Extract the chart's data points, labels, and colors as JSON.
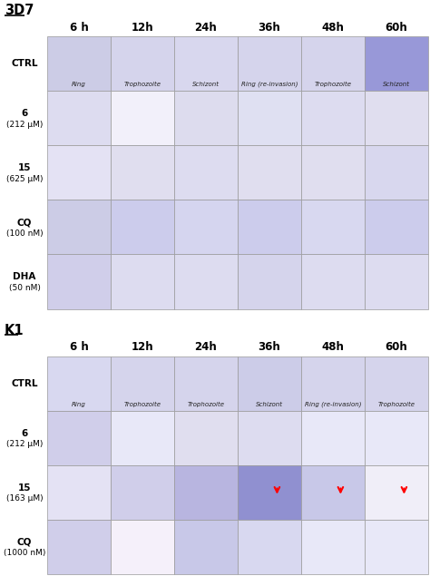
{
  "fig_width": 4.74,
  "fig_height": 6.35,
  "dpi": 100,
  "bg_color": "#ffffff",
  "section1": {
    "title": "3D7",
    "col_headers": [
      "6 h",
      "12h",
      "24h",
      "36h",
      "48h",
      "60h"
    ],
    "rows": [
      {
        "label_line1": "CTRL",
        "label_line2": "",
        "sublabels": [
          "Ring",
          "Trophozoite",
          "Schizont",
          "Ring (re-invasion)",
          "Trophozoite",
          "Schizont"
        ],
        "cell_colors": [
          "#cccce6",
          "#d5d4ec",
          "#d8d7ee",
          "#d5d4ec",
          "#d5d4ec",
          "#9898d8"
        ]
      },
      {
        "label_line1": "6",
        "label_line2": "(212 μM)",
        "sublabels": [
          "",
          "",
          "",
          "",
          "",
          ""
        ],
        "cell_colors": [
          "#dddcf0",
          "#f2f0fa",
          "#dddcee",
          "#dfe0f2",
          "#dddcf0",
          "#e0deef"
        ]
      },
      {
        "label_line1": "15",
        "label_line2": "(625 μM)",
        "sublabels": [
          "",
          "",
          "",
          "",
          "",
          ""
        ],
        "cell_colors": [
          "#e4e2f4",
          "#e0deef",
          "#dddcf0",
          "#e0deef",
          "#e0deef",
          "#d8d7ee"
        ]
      },
      {
        "label_line1": "CQ",
        "label_line2": "(100 nM)",
        "sublabels": [
          "",
          "",
          "",
          "",
          "",
          ""
        ],
        "cell_colors": [
          "#cccce6",
          "#ccccec",
          "#d5d5ef",
          "#ccccec",
          "#d8d8f0",
          "#ccccec"
        ]
      },
      {
        "label_line1": "DHA",
        "label_line2": "(50 nM)",
        "sublabels": [
          "",
          "",
          "",
          "",
          "",
          ""
        ],
        "cell_colors": [
          "#d0ceea",
          "#dddcf0",
          "#dddcf0",
          "#d5d4ec",
          "#dddcf0",
          "#dddcf0"
        ]
      }
    ]
  },
  "section2": {
    "title": "K1",
    "col_headers": [
      "6 h",
      "12h",
      "24h",
      "36h",
      "48h",
      "60h"
    ],
    "rows": [
      {
        "label_line1": "CTRL",
        "label_line2": "",
        "sublabels": [
          "Ring",
          "Trophozoite",
          "Trophozoite",
          "Schizont",
          "Ring (re-invasion)",
          "Trophozoite"
        ],
        "cell_colors": [
          "#d8d8f0",
          "#d5d4ec",
          "#d5d4ec",
          "#cccce8",
          "#d5d4ec",
          "#d5d4ec"
        ]
      },
      {
        "label_line1": "6",
        "label_line2": "(212 μM)",
        "sublabels": [
          "",
          "",
          "",
          "",
          "",
          ""
        ],
        "cell_colors": [
          "#d0ceea",
          "#e8e8f8",
          "#e0deef",
          "#dddcf0",
          "#e8e8f8",
          "#e8e8f8"
        ]
      },
      {
        "label_line1": "15",
        "label_line2": "(163 μM)",
        "sublabels": [
          "",
          "",
          "",
          "",
          "",
          ""
        ],
        "cell_colors": [
          "#e4e2f4",
          "#d0ceea",
          "#b8b5e0",
          "#9090d0",
          "#c8c8e8",
          "#f0eef8"
        ],
        "red_arrows": [
          false,
          false,
          false,
          true,
          true,
          true
        ]
      },
      {
        "label_line1": "CQ",
        "label_line2": "(1000 nM)",
        "sublabels": [
          "",
          "",
          "",
          "",
          "",
          ""
        ],
        "cell_colors": [
          "#d0ceea",
          "#f5f0fa",
          "#c8c8e8",
          "#d8d8f0",
          "#e8e8f8",
          "#e8e8f8"
        ]
      }
    ]
  },
  "cell_border_color": "#999999",
  "label_fontsize": 7.5,
  "sublabel_fontsize": 5.0,
  "header_fontsize": 8.5,
  "title_fontsize": 10.5
}
